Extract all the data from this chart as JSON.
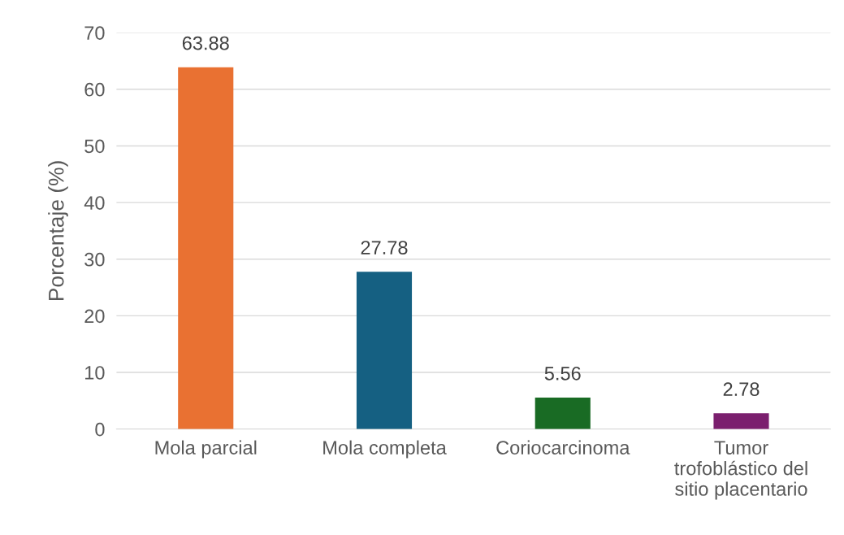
{
  "chart_data": {
    "type": "bar",
    "ylabel": "Porcentaje (%)",
    "categories": [
      "Mola parcial",
      "Mola completa",
      "Coriocarcinoma",
      "Tumor\ntrofoblástico del\nsitio placentario"
    ],
    "values": [
      63.88,
      27.78,
      5.56,
      2.78
    ],
    "colors": [
      "#e97132",
      "#156082",
      "#196b24",
      "#7b1f6e"
    ],
    "ylim": [
      0,
      70
    ],
    "yticks": [
      0,
      10,
      20,
      30,
      40,
      50,
      60,
      70
    ],
    "grid": "y",
    "data_labels": true
  }
}
